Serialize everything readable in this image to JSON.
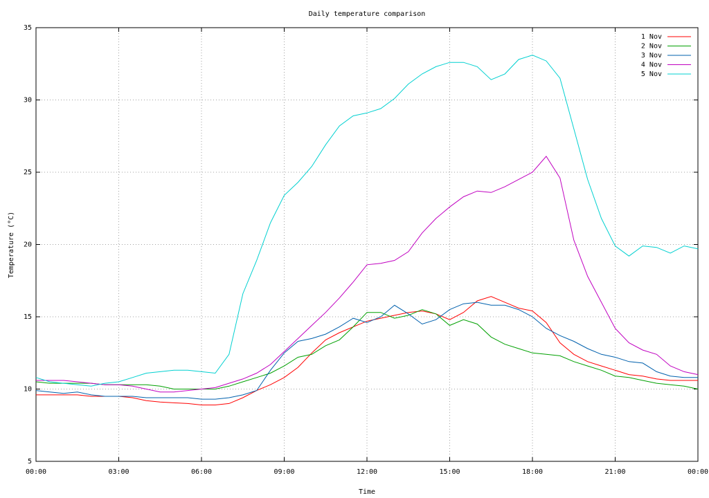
{
  "chart_data": {
    "type": "line",
    "title": "Daily temperature comparison",
    "x_label": "Time",
    "y_label": "Temperature (°C)",
    "x": [
      0,
      0.5,
      1,
      1.5,
      2,
      2.5,
      3,
      3.5,
      4,
      4.5,
      5,
      5.5,
      6,
      6.5,
      7,
      7.5,
      8,
      8.5,
      9,
      9.5,
      10,
      10.5,
      11,
      11.5,
      12,
      12.5,
      13,
      13.5,
      14,
      14.5,
      15,
      15.5,
      16,
      16.5,
      17,
      17.5,
      18,
      18.5,
      19,
      19.5,
      20,
      20.5,
      21,
      21.5,
      22,
      22.5,
      23,
      23.5,
      24
    ],
    "xlim": [
      0,
      24
    ],
    "xticks": [
      {
        "value": 0,
        "label": "00:00"
      },
      {
        "value": 3,
        "label": "03:00"
      },
      {
        "value": 6,
        "label": "06:00"
      },
      {
        "value": 9,
        "label": "09:00"
      },
      {
        "value": 12,
        "label": "12:00"
      },
      {
        "value": 15,
        "label": "15:00"
      },
      {
        "value": 18,
        "label": "18:00"
      },
      {
        "value": 21,
        "label": "21:00"
      },
      {
        "value": 24,
        "label": "00:00"
      }
    ],
    "ylim": [
      5,
      35
    ],
    "yticks": [
      5,
      10,
      15,
      20,
      25,
      30,
      35
    ],
    "grid": true,
    "legend": "top-right",
    "series": [
      {
        "name": "1 Nov",
        "color": "#ff0000",
        "values": [
          9.6,
          9.6,
          9.6,
          9.6,
          9.5,
          9.5,
          9.5,
          9.4,
          9.2,
          9.1,
          9.05,
          9.0,
          8.9,
          8.9,
          9.0,
          9.4,
          9.9,
          10.3,
          10.8,
          11.5,
          12.5,
          13.4,
          13.9,
          14.3,
          14.7,
          14.9,
          15.1,
          15.3,
          15.4,
          15.2,
          14.8,
          15.3,
          16.1,
          16.4,
          16.0,
          15.6,
          15.4,
          14.6,
          13.2,
          12.4,
          11.9,
          11.6,
          11.3,
          11.0,
          10.9,
          10.7,
          10.6,
          10.6,
          10.6
        ]
      },
      {
        "name": "2 Nov",
        "color": "#00a000",
        "values": [
          10.5,
          10.4,
          10.4,
          10.4,
          10.4,
          10.3,
          10.3,
          10.3,
          10.3,
          10.2,
          10.0,
          10.0,
          10.0,
          10.0,
          10.2,
          10.5,
          10.8,
          11.1,
          11.6,
          12.2,
          12.4,
          13.0,
          13.4,
          14.3,
          15.3,
          15.3,
          14.9,
          15.1,
          15.5,
          15.2,
          14.4,
          14.8,
          14.5,
          13.6,
          13.1,
          12.8,
          12.5,
          12.4,
          12.3,
          11.9,
          11.6,
          11.3,
          10.9,
          10.8,
          10.6,
          10.4,
          10.3,
          10.2,
          10.0
        ]
      },
      {
        "name": "3 Nov",
        "color": "#0060ad",
        "values": [
          9.9,
          9.8,
          9.7,
          9.8,
          9.6,
          9.5,
          9.5,
          9.5,
          9.4,
          9.4,
          9.4,
          9.4,
          9.3,
          9.3,
          9.4,
          9.6,
          9.9,
          11.3,
          12.5,
          13.3,
          13.5,
          13.8,
          14.3,
          14.9,
          14.6,
          15.0,
          15.8,
          15.2,
          14.5,
          14.8,
          15.5,
          15.9,
          16.0,
          15.8,
          15.8,
          15.5,
          15.0,
          14.2,
          13.7,
          13.3,
          12.8,
          12.4,
          12.2,
          11.9,
          11.8,
          11.2,
          10.9,
          10.8,
          10.8
        ]
      },
      {
        "name": "4 Nov",
        "color": "#c000c0",
        "values": [
          10.6,
          10.6,
          10.6,
          10.5,
          10.4,
          10.3,
          10.3,
          10.2,
          10.0,
          9.8,
          9.8,
          9.9,
          10.0,
          10.1,
          10.4,
          10.7,
          11.1,
          11.7,
          12.6,
          13.5,
          14.4,
          15.3,
          16.3,
          17.4,
          18.6,
          18.7,
          18.9,
          19.5,
          20.8,
          21.8,
          22.6,
          23.3,
          23.7,
          23.6,
          24.0,
          24.5,
          25.0,
          26.1,
          24.6,
          20.3,
          17.8,
          16.0,
          14.2,
          13.2,
          12.7,
          12.4,
          11.6,
          11.2,
          11.0
        ]
      },
      {
        "name": "5 Nov",
        "color": "#00d0d0",
        "values": [
          10.8,
          10.5,
          10.4,
          10.3,
          10.2,
          10.4,
          10.5,
          10.8,
          11.1,
          11.2,
          11.3,
          11.3,
          11.2,
          11.1,
          12.4,
          16.6,
          18.9,
          21.5,
          23.4,
          24.3,
          25.4,
          26.9,
          28.2,
          28.9,
          29.1,
          29.4,
          30.1,
          31.1,
          31.8,
          32.3,
          32.6,
          32.6,
          32.3,
          31.4,
          31.8,
          32.8,
          33.1,
          32.7,
          31.5,
          28.0,
          24.5,
          21.8,
          19.9,
          19.2,
          19.9,
          19.8,
          19.4,
          19.9,
          19.7
        ]
      }
    ]
  }
}
